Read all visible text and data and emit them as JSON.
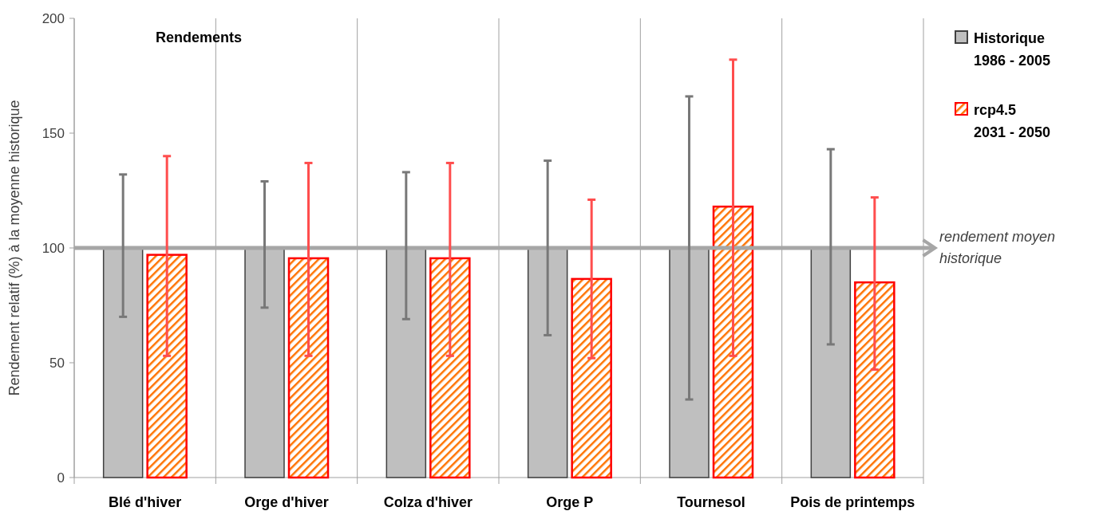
{
  "chart_data": {
    "type": "bar",
    "title": "Rendements",
    "ylabel": "Rendement relatif (%) à la moyenne historique",
    "categories": [
      "Blé d'hiver",
      "Orge d'hiver",
      "Colza d'hiver",
      "Orge P",
      "Tournesol",
      "Pois de printemps"
    ],
    "series": [
      {
        "name": "Historique 1986 - 2005",
        "color": "#bfbfbf",
        "values": [
          100,
          100,
          100,
          100,
          100,
          100
        ],
        "errors": [
          [
            70,
            132
          ],
          [
            74,
            129
          ],
          [
            69,
            133
          ],
          [
            62,
            138
          ],
          [
            34,
            166
          ],
          [
            58,
            143
          ]
        ]
      },
      {
        "name": "rcp4.5 2031 - 2050",
        "color": "#ff0000",
        "values": [
          97,
          95.5,
          95.5,
          86.5,
          118,
          85
        ],
        "errors": [
          [
            53,
            140
          ],
          [
            53,
            137
          ],
          [
            53,
            137
          ],
          [
            52,
            121
          ],
          [
            53,
            182
          ],
          [
            47,
            122
          ]
        ]
      }
    ],
    "ylim": [
      0,
      200
    ],
    "yticks": [
      0,
      50,
      100,
      150,
      200
    ],
    "grid": "x",
    "legend": "top right",
    "ref_lines": [
      {
        "axis": "y",
        "value": 100,
        "label": "rendement moyen historique",
        "color": "#a6a6a6"
      }
    ]
  }
}
